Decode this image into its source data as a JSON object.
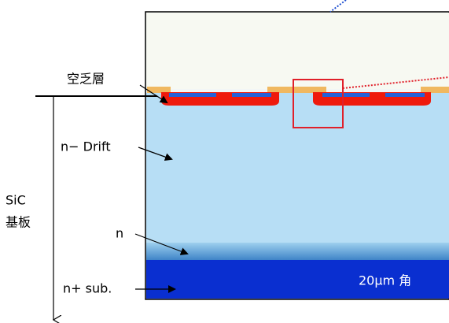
{
  "labels": {
    "depletion": "空乏層",
    "drift": "n− Drift",
    "sic": "SiC",
    "substrate": "基板",
    "n": "n",
    "nsub": "n+ sub.",
    "scale": "20μm 角"
  }
}
